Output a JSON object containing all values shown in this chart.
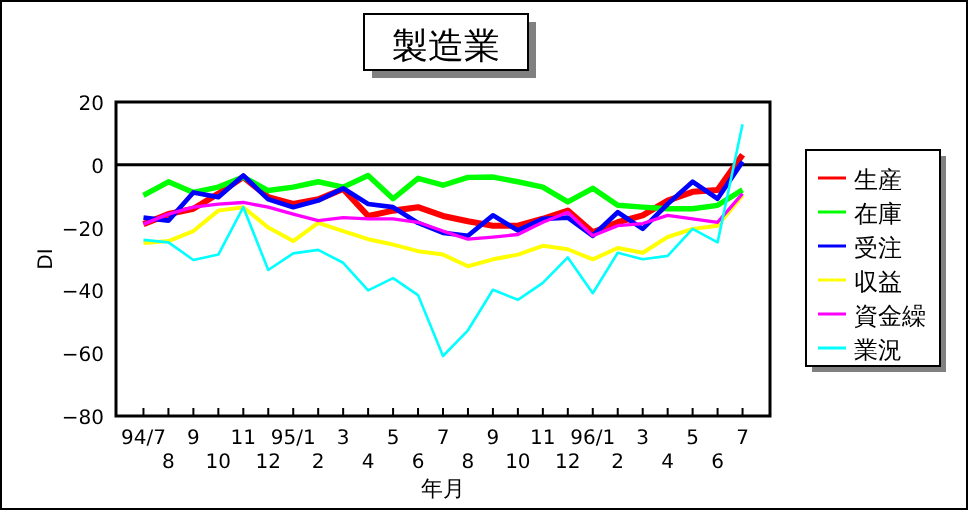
{
  "chart_data": {
    "type": "line",
    "title": "製造業",
    "xlabel": "年月",
    "ylabel": "DI",
    "categories": [
      "94/7",
      "8",
      "9",
      "10",
      "11",
      "12",
      "95/1",
      "2",
      "3",
      "4",
      "5",
      "6",
      "7",
      "8",
      "9",
      "10",
      "11",
      "12",
      "96/1",
      "2",
      "3",
      "4",
      "5",
      "6",
      "7"
    ],
    "series": [
      {
        "name": "生産",
        "color": "#ff0000",
        "values": [
          -18.9,
          -15.7,
          -14,
          -9.2,
          -3.9,
          -10.3,
          -12.5,
          -11,
          -7.7,
          -16.3,
          -14.6,
          -13.5,
          -16.3,
          -18,
          -19.4,
          -19.4,
          -17.2,
          -14.6,
          -21.5,
          -18.3,
          -16.1,
          -11.4,
          -8.6,
          -8,
          3.2
        ]
      },
      {
        "name": "在庫",
        "color": "#00ff00",
        "values": [
          -9.7,
          -5.4,
          -8.8,
          -7.1,
          -3.9,
          -8.2,
          -7.1,
          -5.4,
          -7.1,
          -3.4,
          -10.8,
          -4.3,
          -6.5,
          -4,
          -3.9,
          -5.4,
          -7.1,
          -11.8,
          -7.5,
          -12.9,
          -13.5,
          -14,
          -14,
          -12.9,
          -8
        ]
      },
      {
        "name": "受注",
        "color": "#0000ff",
        "values": [
          -16.8,
          -17.8,
          -8.8,
          -10.3,
          -3.4,
          -11,
          -13.5,
          -11.4,
          -7.5,
          -12.5,
          -13.5,
          -18.5,
          -21.7,
          -22.6,
          -16.1,
          -20.9,
          -17.2,
          -16.8,
          -22.6,
          -15.1,
          -20.4,
          -12.5,
          -5.4,
          -10.8,
          1
        ]
      },
      {
        "name": "収益",
        "color": "#ffff00",
        "values": [
          -24.9,
          -24.3,
          -21.1,
          -14.6,
          -13.5,
          -20,
          -24.3,
          -18.5,
          -21.1,
          -23.7,
          -25.4,
          -27.5,
          -28.6,
          -32.3,
          -30.1,
          -28.6,
          -25.8,
          -26.9,
          -30.1,
          -26.5,
          -28,
          -23,
          -20.4,
          -19.4,
          -9.7
        ]
      },
      {
        "name": "資金繰",
        "color": "#ff00ff",
        "values": [
          -18.9,
          -15.7,
          -13.5,
          -12.5,
          -12,
          -13.5,
          -15.7,
          -17.8,
          -16.8,
          -17.2,
          -17.2,
          -18.3,
          -21.1,
          -23.7,
          -23,
          -22.2,
          -18.3,
          -15.1,
          -22.6,
          -19.4,
          -18.7,
          -16.1,
          -17.2,
          -18.3,
          -9.2
        ]
      },
      {
        "name": "業況",
        "color": "#00ffff",
        "values": [
          -23.9,
          -24.7,
          -30.3,
          -28.6,
          -13.5,
          -33.5,
          -28.2,
          -27.1,
          -31.2,
          -40,
          -36.1,
          -41.5,
          -60.9,
          -52.7,
          -39.8,
          -43,
          -37.6,
          -29.5,
          -40.9,
          -28,
          -30.1,
          -29,
          -20.4,
          -24.7,
          12.9
        ]
      }
    ],
    "ylim": [
      -80,
      20
    ],
    "yticks": [
      -80,
      -60,
      -40,
      -20,
      0,
      20
    ],
    "ref_lines": [
      {
        "axis": "y",
        "value": 0,
        "color": "#000000"
      }
    ],
    "legend": "right",
    "grid": false,
    "marker": "none",
    "line_style": "solid"
  }
}
